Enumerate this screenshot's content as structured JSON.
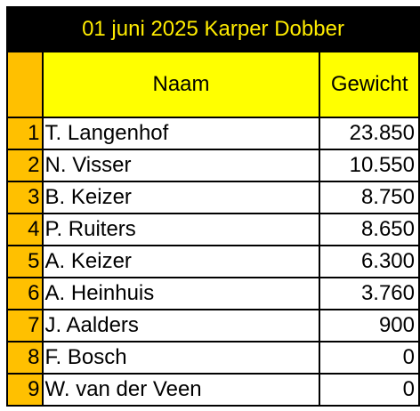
{
  "title": "01 juni 2025 Karper Dobber",
  "columns": {
    "name": "Naam",
    "weight": "Gewicht"
  },
  "rows": [
    {
      "rank": "1",
      "name": "T. Langenhof",
      "weight": "23.850"
    },
    {
      "rank": "2",
      "name": "N. Visser",
      "weight": "10.550"
    },
    {
      "rank": "3",
      "name": "B. Keizer",
      "weight": "8.750"
    },
    {
      "rank": "4",
      "name": "P. Ruiters",
      "weight": "8.650"
    },
    {
      "rank": "5",
      "name": "A. Keizer",
      "weight": "6.300"
    },
    {
      "rank": "6",
      "name": "A. Heinhuis",
      "weight": "3.760"
    },
    {
      "rank": "7",
      "name": "J. Aalders",
      "weight": "900"
    },
    {
      "rank": "8",
      "name": "F. Bosch",
      "weight": "0"
    },
    {
      "rank": "9",
      "name": "W. van der Veen",
      "weight": "0"
    }
  ],
  "colors": {
    "title_bg": "#000000",
    "title_text": "#ffec00",
    "rank_bg": "#ffc000",
    "header_bg": "#ffff00"
  }
}
